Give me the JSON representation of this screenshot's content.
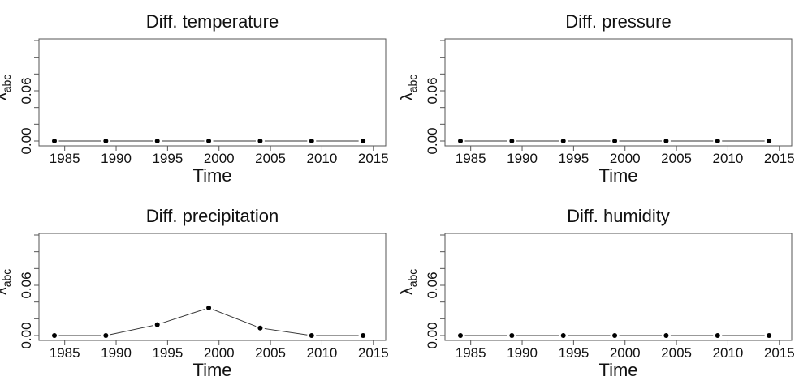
{
  "chart_data": [
    {
      "type": "line",
      "title": "Diff. temperature",
      "xlabel": "Time",
      "ylabel": "λabc",
      "ylabel_main": "λ",
      "ylabel_sub": "abc",
      "x": [
        1984,
        1989,
        1994,
        1999,
        2004,
        2009,
        2014
      ],
      "values": [
        0,
        0,
        0,
        0,
        0,
        0,
        0
      ],
      "xticks": [
        1985,
        1990,
        1995,
        2000,
        2005,
        2010,
        2015
      ],
      "ytick_labels": [
        "0.00",
        "0.06"
      ],
      "ylim": [
        0,
        0.12
      ],
      "grid": false
    },
    {
      "type": "line",
      "title": "Diff. pressure",
      "xlabel": "Time",
      "ylabel": "λabc",
      "ylabel_main": "λ",
      "ylabel_sub": "abc",
      "x": [
        1984,
        1989,
        1994,
        1999,
        2004,
        2009,
        2014
      ],
      "values": [
        0,
        0,
        0,
        0,
        0,
        0,
        0
      ],
      "xticks": [
        1985,
        1990,
        1995,
        2000,
        2005,
        2010,
        2015
      ],
      "ytick_labels": [
        "0.00",
        "0.06"
      ],
      "ylim": [
        0,
        0.12
      ],
      "grid": false
    },
    {
      "type": "line",
      "title": "Diff. precipitation",
      "xlabel": "Time",
      "ylabel": "λabc",
      "ylabel_main": "λ",
      "ylabel_sub": "abc",
      "x": [
        1984,
        1989,
        1994,
        1999,
        2004,
        2009,
        2014
      ],
      "values": [
        0,
        0,
        0.013,
        0.033,
        0.009,
        0,
        0
      ],
      "xticks": [
        1985,
        1990,
        1995,
        2000,
        2005,
        2010,
        2015
      ],
      "ytick_labels": [
        "0.00",
        "0.06"
      ],
      "ylim": [
        0,
        0.12
      ],
      "grid": false
    },
    {
      "type": "line",
      "title": "Diff. humidity",
      "xlabel": "Time",
      "ylabel": "λabc",
      "ylabel_main": "λ",
      "ylabel_sub": "abc",
      "x": [
        1984,
        1989,
        1994,
        1999,
        2004,
        2009,
        2014
      ],
      "values": [
        0,
        0,
        0,
        0,
        0,
        0,
        0
      ],
      "xticks": [
        1985,
        1990,
        1995,
        2000,
        2005,
        2010,
        2015
      ],
      "ytick_labels": [
        "0.00",
        "0.06"
      ],
      "ylim": [
        0,
        0.12
      ],
      "grid": false
    }
  ]
}
